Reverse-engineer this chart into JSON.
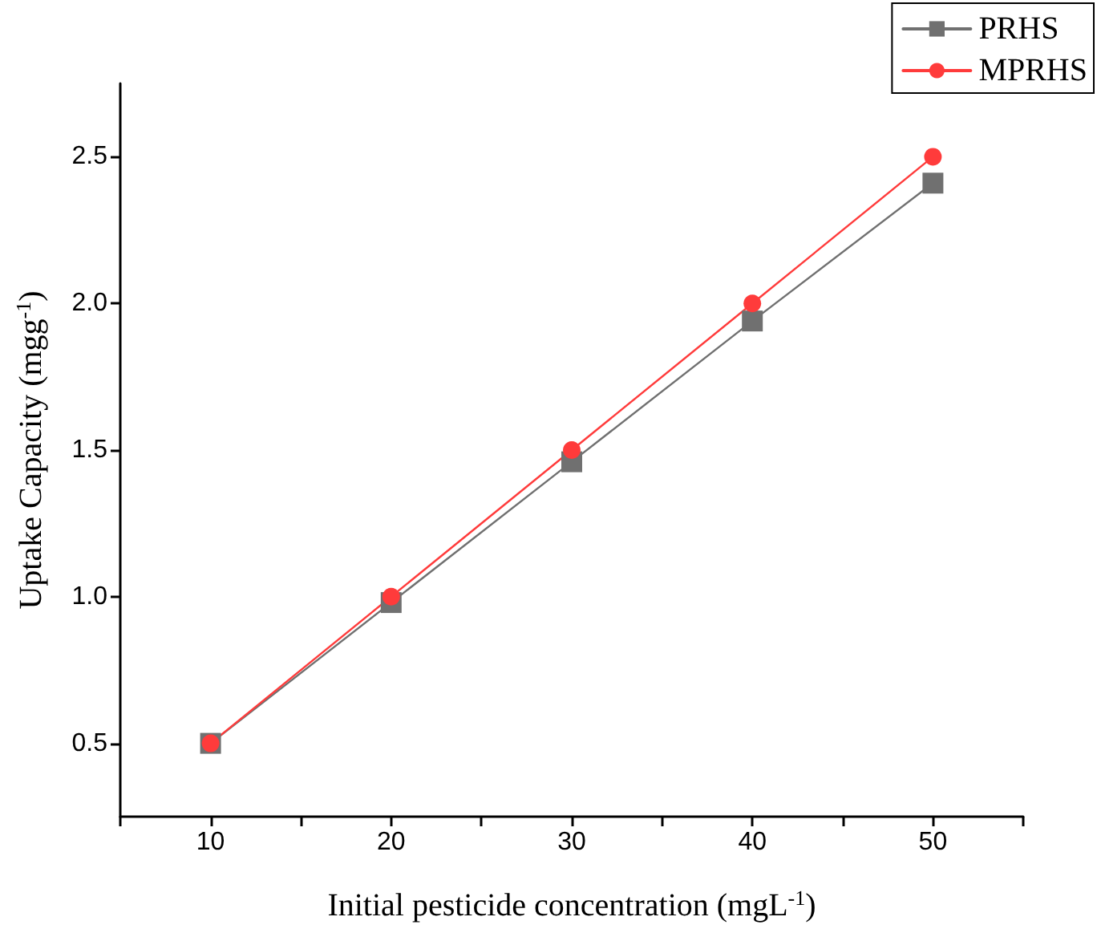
{
  "chart_data": {
    "type": "line",
    "xlabel": "Initial pesticide concentration (mgL$^{-1}$)",
    "ylabel": "Uptake Capacity (mgg$^{-1}$)",
    "x": [
      10,
      20,
      30,
      40,
      50
    ],
    "series": [
      {
        "name": "PRHS",
        "color": "#707070",
        "marker": "square",
        "values": [
          0.5,
          0.98,
          1.46,
          1.94,
          2.41
        ]
      },
      {
        "name": "MPRHS",
        "color": "#ff3b3b",
        "marker": "circle",
        "values": [
          0.5,
          1.0,
          1.5,
          2.0,
          2.5
        ]
      }
    ],
    "xlim": [
      5,
      55
    ],
    "xticks": [
      {
        "value": 5,
        "label": null
      },
      10,
      {
        "value": 15,
        "label": null
      },
      20,
      {
        "value": 25,
        "label": null
      },
      30,
      {
        "value": 35,
        "label": null
      },
      40,
      {
        "value": 45,
        "label": null
      },
      50,
      {
        "value": 55,
        "label": null
      }
    ],
    "ylim": [
      0.25,
      2.75
    ],
    "yticks": [
      0.5,
      {
        "value": 1,
        "label": "1.0"
      },
      1.5,
      {
        "value": 2,
        "label": "2.0"
      },
      2.5
    ],
    "grid": false,
    "legend": "top right",
    "line_style": "solid"
  }
}
